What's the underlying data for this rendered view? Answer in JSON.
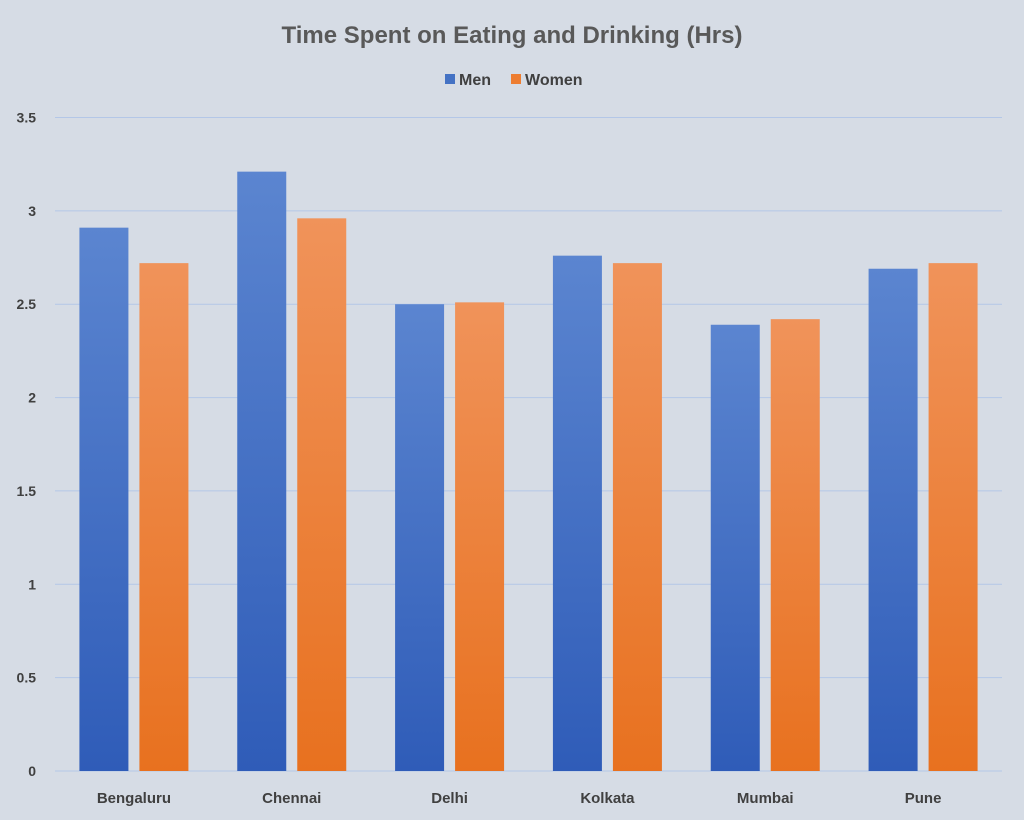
{
  "chart_data": {
    "type": "bar",
    "title": "Time Spent on Eating and Drinking (Hrs)",
    "categories": [
      "Bengaluru",
      "Chennai",
      "Delhi",
      "Kolkata",
      "Mumbai",
      "Pune"
    ],
    "series": [
      {
        "name": "Men",
        "values": [
          2.91,
          3.21,
          2.5,
          2.76,
          2.39,
          2.69
        ],
        "color": "#4472c4"
      },
      {
        "name": "Women",
        "values": [
          2.72,
          2.96,
          2.51,
          2.72,
          2.42,
          2.72
        ],
        "color": "#ed7d31"
      }
    ],
    "yticks": [
      "0",
      "0.5",
      "1",
      "1.5",
      "2",
      "2.5",
      "3",
      "3.5"
    ],
    "ylim": [
      0,
      3.5
    ],
    "grid": true,
    "legend_position": "top"
  }
}
